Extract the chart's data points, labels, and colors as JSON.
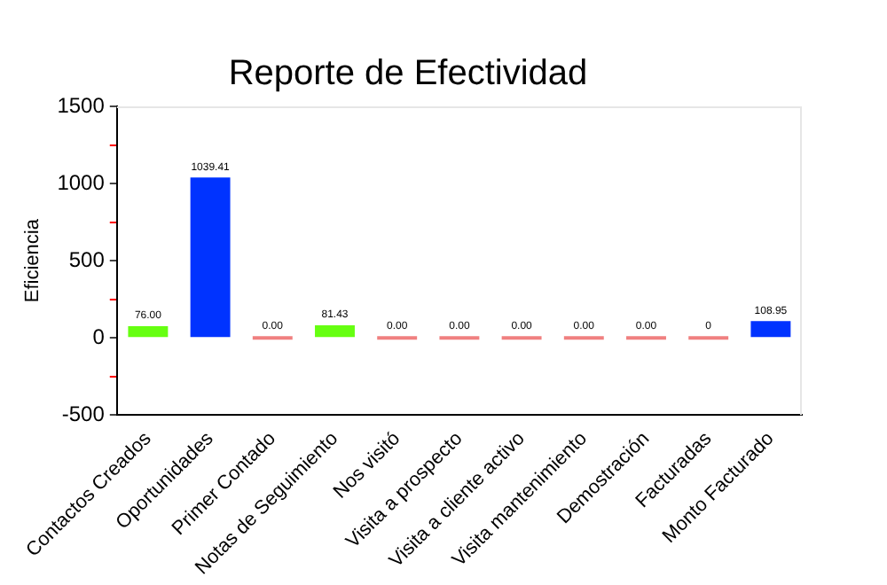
{
  "chart_data": {
    "type": "bar",
    "title": "Reporte de Efectividad",
    "ylabel": "Eficiencia",
    "categories": [
      "Contactos Creados",
      "Oportunidades",
      "Primer Contado",
      "Notas de Seguimiento",
      "Nos visitó",
      "Visita a prospecto",
      "Visita a cliente activo",
      "Visita mantenimiento",
      "Demostración",
      "Facturadas",
      "Monto Facturado"
    ],
    "values": [
      76,
      1039.41,
      0,
      81.43,
      0,
      0,
      0,
      0,
      0,
      0,
      108.95
    ],
    "value_labels": [
      "76.00",
      "1039.41",
      "0.00",
      "81.43",
      "0.00",
      "0.00",
      "0.00",
      "0.00",
      "0.00",
      "0",
      "108.95"
    ],
    "colors": [
      "#66ff11",
      "#0033ff",
      "#f08080",
      "#66ff11",
      "#f08080",
      "#f08080",
      "#f08080",
      "#f08080",
      "#f08080",
      "#f08080",
      "#0033ff"
    ],
    "ylim": [
      -500,
      1500
    ],
    "yticks": [
      -500,
      {
        "value": -250,
        "label": null
      },
      0,
      {
        "value": 250,
        "label": null
      },
      500,
      {
        "value": 750,
        "label": null
      },
      1000,
      {
        "value": 1250,
        "label": null
      },
      1500
    ],
    "grid": false,
    "legend": false
  }
}
